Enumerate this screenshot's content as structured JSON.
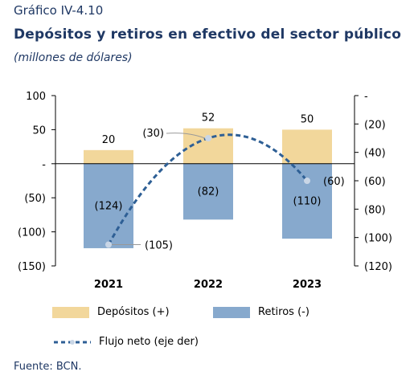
{
  "figure": {
    "label": "Gráfico IV-4.10",
    "title": "Depósitos y retiros en efectivo del sector público",
    "subtitle": "(millones de dólares)",
    "source": "Fuente: BCN."
  },
  "colors": {
    "depositos": "#f2d79b",
    "retiros": "#87a9cd",
    "flujo": "#2e5f95",
    "marker": "#c9d6e6"
  },
  "chart_data": {
    "type": "bar",
    "categories": [
      "2021",
      "2022",
      "2023"
    ],
    "series": [
      {
        "name": "Depósitos (+)",
        "axis": "left",
        "values": [
          20,
          52,
          50
        ],
        "labels": [
          "20",
          "52",
          "50"
        ]
      },
      {
        "name": "Retiros (-)",
        "axis": "left",
        "values": [
          -124,
          -82,
          -110
        ],
        "labels": [
          "(124)",
          "(82)",
          "(110)"
        ]
      },
      {
        "name": "Flujo neto (eje der)",
        "type": "line",
        "style": "dashed",
        "axis": "right",
        "values": [
          -105,
          -30,
          -60
        ],
        "labels": [
          "(105)",
          "(30)",
          "(60)"
        ]
      }
    ],
    "left_axis": {
      "ylim": [
        -150,
        100
      ],
      "ticks": [
        100,
        50,
        0,
        -50,
        -100,
        -150
      ],
      "tick_labels": [
        "100",
        "50",
        "-",
        "(50)",
        "(100)",
        "(150)"
      ]
    },
    "right_axis": {
      "ylim": [
        -120,
        0
      ],
      "ticks": [
        0,
        -20,
        -40,
        -60,
        -80,
        -100,
        -120
      ],
      "tick_labels": [
        "-",
        "(20)",
        "(40)",
        "(60)",
        "(80)",
        "(100)",
        "(120)"
      ]
    },
    "grid": false,
    "legend_position": "bottom"
  }
}
